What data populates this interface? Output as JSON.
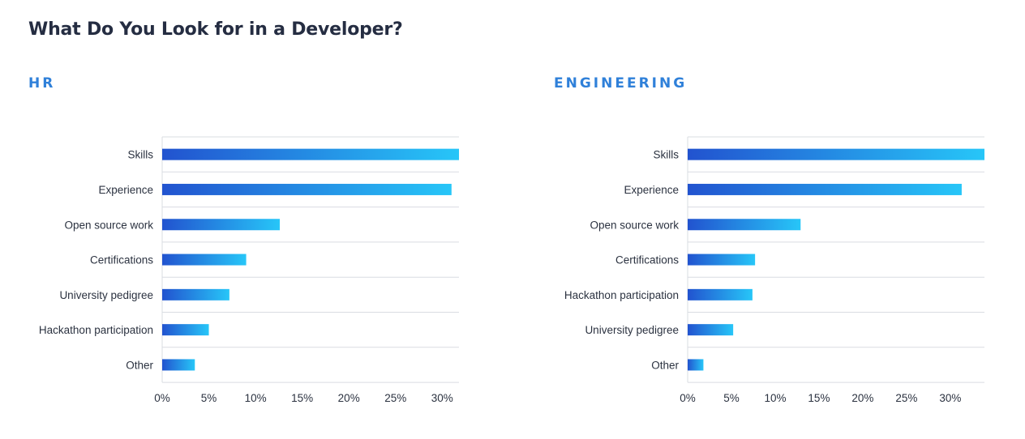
{
  "title": "What Do You Look for in a Developer?",
  "colors": {
    "accent": "#2f80d9",
    "bar_start": "#2253cf",
    "bar_end": "#27c6f8",
    "grid": "#d9dce2"
  },
  "chart_data": [
    {
      "type": "bar",
      "orientation": "horizontal",
      "title": "HR",
      "categories": [
        "Skills",
        "Experience",
        "Open source work",
        "Certifications",
        "University pedigree",
        "Hackathon participation",
        "Other"
      ],
      "values": [
        31.8,
        31.0,
        12.6,
        9.0,
        7.2,
        5.0,
        3.5
      ],
      "xlim": [
        0,
        31.8
      ],
      "x_ticks": [
        "0%",
        "5%",
        "10%",
        "15%",
        "20%",
        "25%",
        "30%"
      ],
      "tick_values": [
        0,
        5,
        10,
        15,
        20,
        25,
        30
      ],
      "grid": true,
      "legend": false
    },
    {
      "type": "bar",
      "orientation": "horizontal",
      "title": "ENGINEERING",
      "categories": [
        "Skills",
        "Experience",
        "Open source work",
        "Certifications",
        "Hackathon participation",
        "University pedigree",
        "Other"
      ],
      "values": [
        33.9,
        31.3,
        12.9,
        7.7,
        7.4,
        5.2,
        1.8
      ],
      "xlim": [
        0,
        33.9
      ],
      "x_ticks": [
        "0%",
        "5%",
        "10%",
        "15%",
        "20%",
        "25%",
        "30%"
      ],
      "tick_values": [
        0,
        5,
        10,
        15,
        20,
        25,
        30
      ],
      "grid": true,
      "legend": false
    }
  ]
}
